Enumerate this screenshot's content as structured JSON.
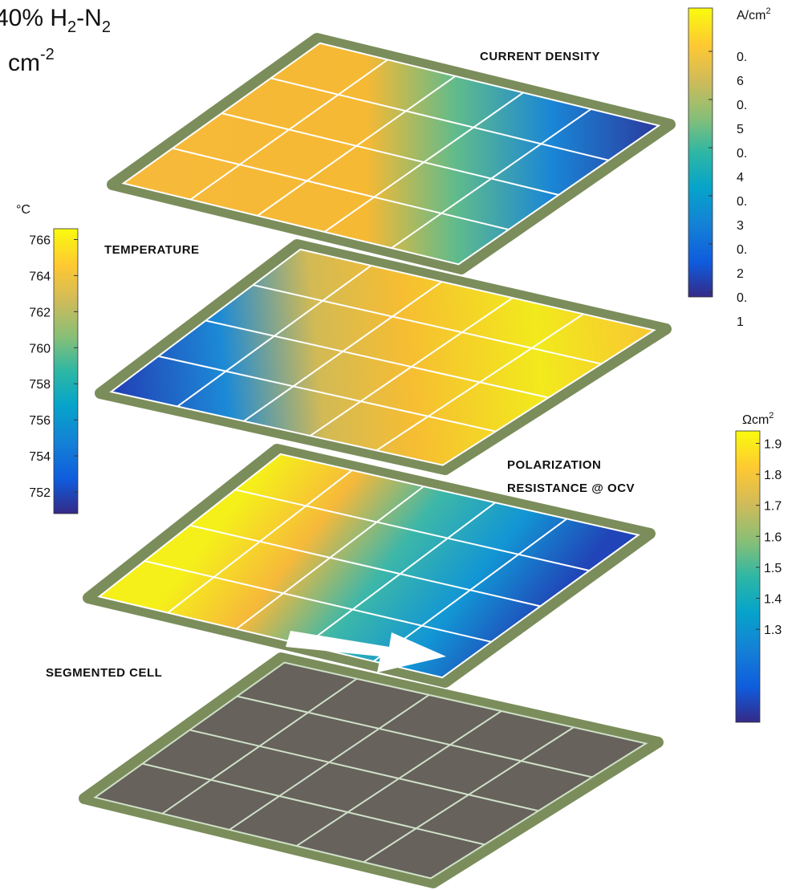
{
  "title": {
    "parts": [
      "40% H",
      "2",
      "-N",
      "2"
    ]
  },
  "subtitle": {
    "parts": [
      "cm",
      "-2"
    ]
  },
  "layers": [
    {
      "label": [
        "CURRENT DENSITY"
      ]
    },
    {
      "label": [
        "TEMPERATURE"
      ]
    },
    {
      "label": [
        "POLARIZATION",
        "RESISTANCE @ OCV"
      ]
    },
    {
      "label": [
        "SEGMENTED CELL"
      ]
    }
  ],
  "colorbars": [
    {
      "unit_parts": [
        "A/cm",
        "2"
      ],
      "lim": [
        0.09,
        0.69
      ],
      "ticks": [
        {
          "value": 0.6,
          "label": "0.6"
        },
        {
          "value": 0.5,
          "label": "0.5"
        },
        {
          "value": 0.4,
          "label": "0.4"
        },
        {
          "value": 0.3,
          "label": "0.3"
        },
        {
          "value": 0.2,
          "label": "0.2"
        },
        {
          "value": 0.1,
          "label": "0.1"
        }
      ]
    },
    {
      "unit_parts": [
        "°C"
      ],
      "lim": [
        750.8,
        766.6
      ],
      "ticks": [
        766,
        764,
        762,
        760,
        758,
        756,
        754,
        752
      ]
    },
    {
      "unit_parts": [
        "Ωcm",
        "2"
      ],
      "lim": [
        1.0,
        1.94
      ],
      "ticks": [
        1.9,
        1.8,
        1.7,
        1.6,
        1.5,
        1.4,
        1.3
      ]
    }
  ]
}
